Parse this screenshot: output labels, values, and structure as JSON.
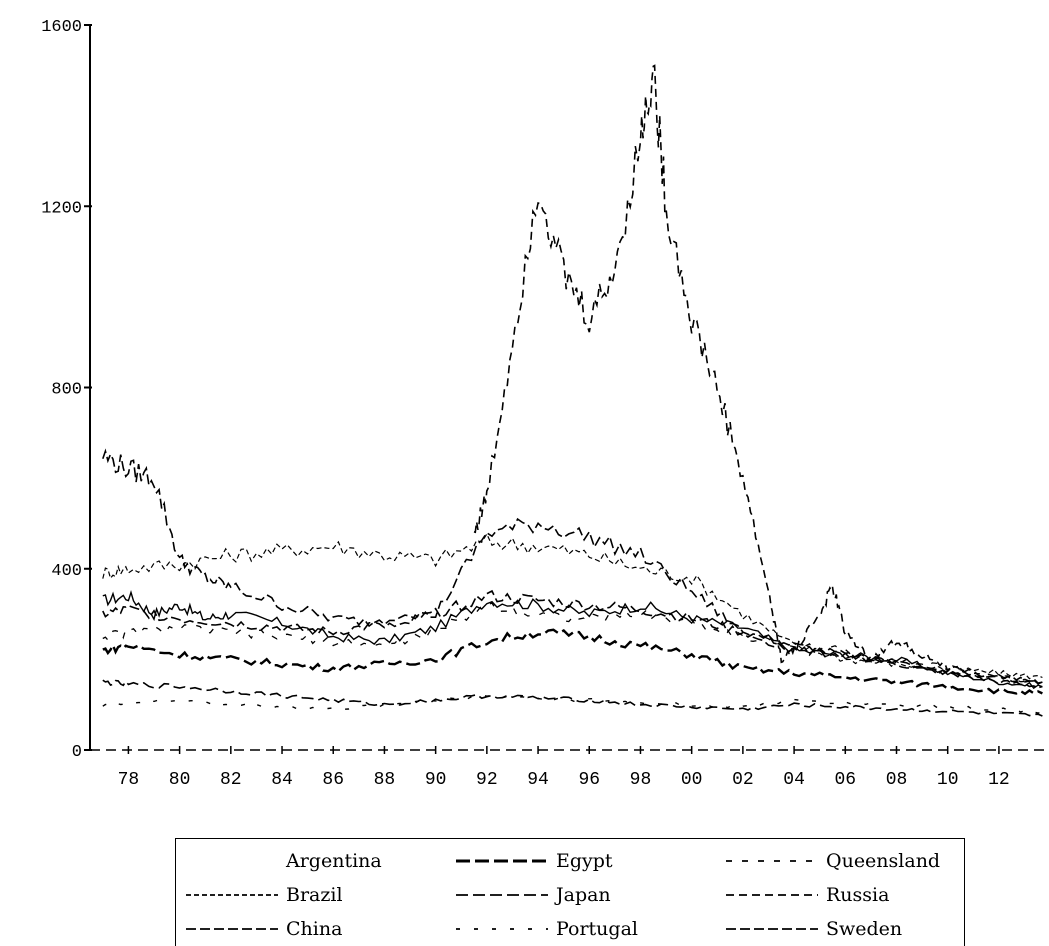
{
  "chart_data": {
    "type": "line",
    "xlim": [
      1976.5,
      2013.8
    ],
    "ylim": [
      0,
      1600
    ],
    "x_tick_labels": [
      "78",
      "80",
      "82",
      "84",
      "86",
      "88",
      "90",
      "92",
      "94",
      "96",
      "98",
      "00",
      "02",
      "04",
      "06",
      "08",
      "10",
      "12"
    ],
    "y_tick_labels": [
      "0",
      "400",
      "800",
      "1200",
      "1600"
    ],
    "legend_position": "bottom",
    "series": [
      {
        "name": "Argentina",
        "dash": "solid",
        "x": [
          1977,
          1978,
          1979,
          1980,
          1981,
          1982,
          1984,
          1986,
          1988,
          1990,
          1992,
          1994,
          1996,
          1998,
          2000,
          2002,
          2004,
          2006,
          2008,
          2010,
          2012,
          2013.7
        ],
        "values": [
          330,
          340,
          300,
          320,
          290,
          300,
          280,
          250,
          240,
          270,
          330,
          320,
          300,
          320,
          290,
          270,
          220,
          210,
          200,
          170,
          150,
          140
        ]
      },
      {
        "name": "Brazil",
        "dash": "fine",
        "x": [
          1977,
          1978,
          1980,
          1982,
          1984,
          1986,
          1988,
          1990,
          1992,
          1994,
          1996,
          1998,
          2000,
          2002,
          2004,
          2006,
          2008,
          2010,
          2012,
          2013.7
        ],
        "values": [
          390,
          400,
          410,
          430,
          440,
          450,
          430,
          420,
          460,
          450,
          430,
          400,
          380,
          300,
          230,
          200,
          190,
          180,
          170,
          160
        ]
      },
      {
        "name": "China",
        "dash": "long",
        "x": [
          1977,
          1978,
          1979,
          1980,
          1981,
          1982,
          1984,
          1986,
          1988,
          1990,
          1992,
          1994,
          1996,
          1998,
          2000,
          2002,
          2004,
          2006,
          2008,
          2010,
          2012,
          2013.7
        ],
        "values": [
          650,
          620,
          600,
          420,
          380,
          360,
          320,
          290,
          280,
          300,
          480,
          500,
          470,
          430,
          350,
          260,
          220,
          210,
          190,
          170,
          160,
          150
        ]
      },
      {
        "name": "Egypt",
        "dash": "bold",
        "x": [
          1977,
          1978,
          1980,
          1982,
          1984,
          1986,
          1988,
          1990,
          1992,
          1994,
          1996,
          1998,
          2000,
          2002,
          2004,
          2006,
          2008,
          2010,
          2012,
          2013.7
        ],
        "values": [
          220,
          230,
          210,
          200,
          190,
          180,
          190,
          200,
          240,
          260,
          250,
          230,
          210,
          180,
          170,
          160,
          150,
          140,
          130,
          125
        ]
      },
      {
        "name": "Japan",
        "dash": "med",
        "x": [
          1977,
          1978,
          1980,
          1982,
          1984,
          1986,
          1988,
          1990,
          1992,
          1994,
          1996,
          1998,
          2000,
          2002,
          2004,
          2006,
          2008,
          2010,
          2012,
          2013.7
        ],
        "values": [
          150,
          145,
          140,
          130,
          120,
          110,
          100,
          110,
          120,
          115,
          110,
          100,
          95,
          90,
          100,
          95,
          90,
          85,
          80,
          75
        ]
      },
      {
        "name": "Portugal",
        "dash": "sparse",
        "x": [
          1977,
          1978,
          1980,
          1982,
          1984,
          1986,
          1988,
          1990,
          1992,
          1994,
          1996,
          1998,
          2000,
          2002,
          2004,
          2006,
          2008,
          2010,
          2012,
          2013.7
        ],
        "values": [
          100,
          105,
          110,
          100,
          95,
          90,
          100,
          110,
          120,
          115,
          110,
          105,
          100,
          95,
          110,
          105,
          100,
          95,
          90,
          85
        ]
      },
      {
        "name": "Queensland",
        "dash": "loose",
        "x": [
          1977,
          1978,
          1980,
          1982,
          1984,
          1986,
          1988,
          1990,
          1992,
          1994,
          1996,
          1998,
          2000,
          2002,
          2004,
          2006,
          2008,
          2010,
          2012,
          2013.7
        ],
        "values": [
          250,
          260,
          270,
          260,
          250,
          240,
          230,
          260,
          320,
          300,
          290,
          300,
          280,
          250,
          230,
          220,
          200,
          180,
          160,
          150
        ]
      },
      {
        "name": "Russia",
        "dash": "dashed",
        "x": [
          1991.5,
          1992,
          1993,
          1994,
          1995,
          1996,
          1997,
          1998,
          1998.5,
          1999,
          2000,
          2001,
          2002,
          2003,
          2003.5,
          2004,
          2005,
          2005.5,
          2006,
          2007,
          2008,
          2009,
          2010,
          2012,
          2013.7
        ],
        "values": [
          480,
          560,
          900,
          1250,
          1050,
          950,
          1060,
          1350,
          1500,
          1200,
          950,
          800,
          600,
          350,
          200,
          220,
          300,
          360,
          260,
          200,
          240,
          210,
          180,
          160,
          150
        ]
      },
      {
        "name": "Sweden",
        "dash": "long",
        "x": [
          1977,
          1978,
          1980,
          1982,
          1984,
          1986,
          1988,
          1990,
          1992,
          1994,
          1996,
          1998,
          2000,
          2002,
          2004,
          2006,
          2008,
          2010,
          2012,
          2013.7
        ],
        "values": [
          300,
          310,
          290,
          280,
          270,
          260,
          280,
          300,
          340,
          330,
          320,
          310,
          290,
          260,
          230,
          210,
          190,
          170,
          150,
          140
        ]
      }
    ]
  },
  "legend": {
    "items": [
      {
        "name": "Argentina",
        "dash": "solid"
      },
      {
        "name": "Egypt",
        "dash": "bold"
      },
      {
        "name": "Queensland",
        "dash": "loose"
      },
      {
        "name": "Brazil",
        "dash": "fine"
      },
      {
        "name": "Japan",
        "dash": "med"
      },
      {
        "name": "Russia",
        "dash": "dashed"
      },
      {
        "name": "China",
        "dash": "long"
      },
      {
        "name": "Portugal",
        "dash": "sparse"
      },
      {
        "name": "Sweden",
        "dash": "long"
      }
    ]
  }
}
